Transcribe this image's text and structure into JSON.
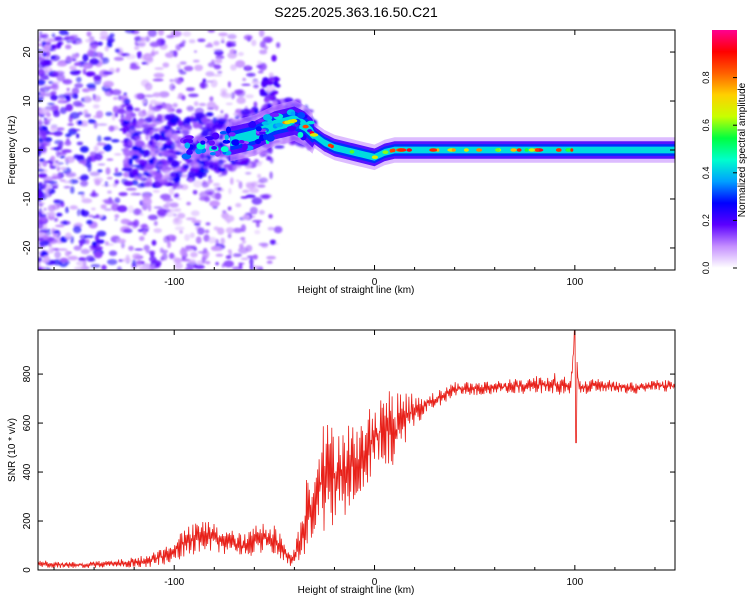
{
  "figure": {
    "title": "S225.2025.363.16.50.C21"
  },
  "chart_data": [
    {
      "type": "heatmap",
      "title": "S225.2025.363.16.50.C21",
      "xlabel": "Height of straight line (km)",
      "ylabel": "Frequency (Hz)",
      "xlim": [
        -168,
        150
      ],
      "ylim": [
        -24.5,
        24.5
      ],
      "xticks": [
        -100,
        0,
        100
      ],
      "xtick_labels": [
        "-100",
        "0",
        "100"
      ],
      "yticks": [
        -20,
        -10,
        0,
        10,
        20
      ],
      "ytick_labels": [
        "-20",
        "-10",
        "0",
        "10",
        "20"
      ],
      "ridge": {
        "x": [
          -100,
          -90,
          -80,
          -70,
          -60,
          -50,
          -40,
          -35,
          -30,
          -25,
          -20,
          -15,
          -10,
          -5,
          0,
          5,
          10,
          20,
          40,
          80,
          120,
          150
        ],
        "frequency": [
          0,
          0.5,
          1.5,
          2,
          3,
          5,
          6,
          5,
          3,
          1.5,
          0.5,
          0,
          -0.5,
          -1,
          -1.5,
          -0.5,
          0,
          0,
          0,
          0,
          0,
          0
        ]
      },
      "colorbar": {
        "label": "Normalized spectral amplitude",
        "range": [
          0,
          1
        ],
        "ticks": [
          0.0,
          0.2,
          0.4,
          0.6,
          0.8
        ],
        "tick_labels": [
          "0.0",
          "0.2",
          "0.4",
          "0.6",
          "0.8"
        ],
        "colormap": [
          "#ffffff",
          "#c58fff",
          "#5b00ff",
          "#0000ff",
          "#00a0ff",
          "#00ffcc",
          "#00ff40",
          "#c8ff00",
          "#ffd000",
          "#ff6000",
          "#ff0000",
          "#ff0090"
        ]
      }
    },
    {
      "type": "line",
      "xlabel": "Height of straight line (km)",
      "ylabel": "SNR (10 * v/v)",
      "xlim": [
        -168,
        150
      ],
      "ylim": [
        0,
        980
      ],
      "xticks": [
        -100,
        0,
        100
      ],
      "xtick_labels": [
        "-100",
        "0",
        "100"
      ],
      "yticks": [
        0,
        200,
        400,
        600,
        800
      ],
      "ytick_labels": [
        "0",
        "200",
        "400",
        "600",
        "800"
      ],
      "series": [
        {
          "name": "SNR",
          "color": "#e8211a",
          "x": [
            -168,
            -150,
            -130,
            -115,
            -105,
            -95,
            -85,
            -75,
            -65,
            -55,
            -48,
            -42,
            -38,
            -34,
            -30,
            -26,
            -22,
            -18,
            -14,
            -10,
            -6,
            -2,
            2,
            6,
            10,
            14,
            20,
            26,
            32,
            40,
            50,
            60,
            70,
            80,
            90,
            98,
            100,
            102,
            110,
            120,
            130,
            140,
            150
          ],
          "y": [
            25,
            20,
            25,
            35,
            55,
            110,
            140,
            120,
            95,
            140,
            110,
            40,
            90,
            230,
            280,
            380,
            380,
            400,
            420,
            430,
            460,
            510,
            560,
            600,
            560,
            620,
            650,
            680,
            700,
            740,
            740,
            745,
            750,
            755,
            760,
            750,
            960,
            740,
            755,
            750,
            740,
            755,
            750
          ],
          "spread": [
            15,
            12,
            15,
            25,
            40,
            60,
            70,
            55,
            50,
            80,
            60,
            25,
            80,
            180,
            200,
            230,
            220,
            200,
            200,
            160,
            150,
            160,
            150,
            170,
            150,
            120,
            70,
            40,
            35,
            30,
            30,
            30,
            30,
            40,
            45,
            35,
            0,
            35,
            25,
            25,
            25,
            25,
            25
          ]
        }
      ]
    }
  ]
}
